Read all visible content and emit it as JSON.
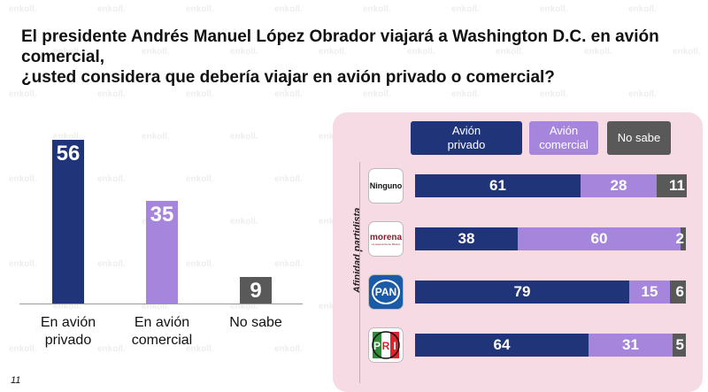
{
  "title_line1": "El presidente Andrés Manuel López Obrador viajará a Washington D.C. en avión comercial,",
  "title_line2": "¿usted considera que debería viajar en avión privado o comercial?",
  "page_number": "11",
  "watermark_text": "enkoll.",
  "colors": {
    "privado": "#1f3479",
    "comercial": "#a685dc",
    "no_sabe": "#595959",
    "panel_bg": "#f6dbe5"
  },
  "chart_data": [
    {
      "type": "bar",
      "categories": [
        "En avión privado",
        "En avión comercial",
        "No sabe"
      ],
      "category_lines": [
        [
          "En avión",
          "privado"
        ],
        [
          "En avión",
          "comercial"
        ],
        [
          "No sabe"
        ]
      ],
      "values": [
        56,
        35,
        9
      ],
      "ylim": [
        0,
        60
      ]
    },
    {
      "type": "bar",
      "orientation": "horizontal-stacked",
      "ylabel": "Afinidad partidista",
      "legend": [
        {
          "lines": [
            "Avión",
            "privado"
          ],
          "key": "privado"
        },
        {
          "lines": [
            "Avión",
            "comercial"
          ],
          "key": "comercial"
        },
        {
          "lines": [
            "No sabe"
          ],
          "key": "no_sabe"
        }
      ],
      "categories": [
        "Ninguno",
        "morena",
        "PAN",
        "PRI"
      ],
      "category_icons": [
        "ninguno-logo",
        "morena-logo",
        "pan-logo",
        "pri-logo"
      ],
      "series": [
        {
          "name": "Avión privado",
          "values": [
            61,
            38,
            79,
            64
          ]
        },
        {
          "name": "Avión comercial",
          "values": [
            28,
            60,
            15,
            31
          ]
        },
        {
          "name": "No sabe",
          "values": [
            11,
            2,
            6,
            5
          ]
        }
      ],
      "xlim": [
        0,
        100
      ]
    }
  ],
  "logos": {
    "ninguno_text": "Ninguno",
    "morena_text": "morena",
    "morena_sub": "La esperanza de México",
    "pan_text": "PAN",
    "pri_letters": [
      "P",
      "R",
      "I"
    ]
  }
}
